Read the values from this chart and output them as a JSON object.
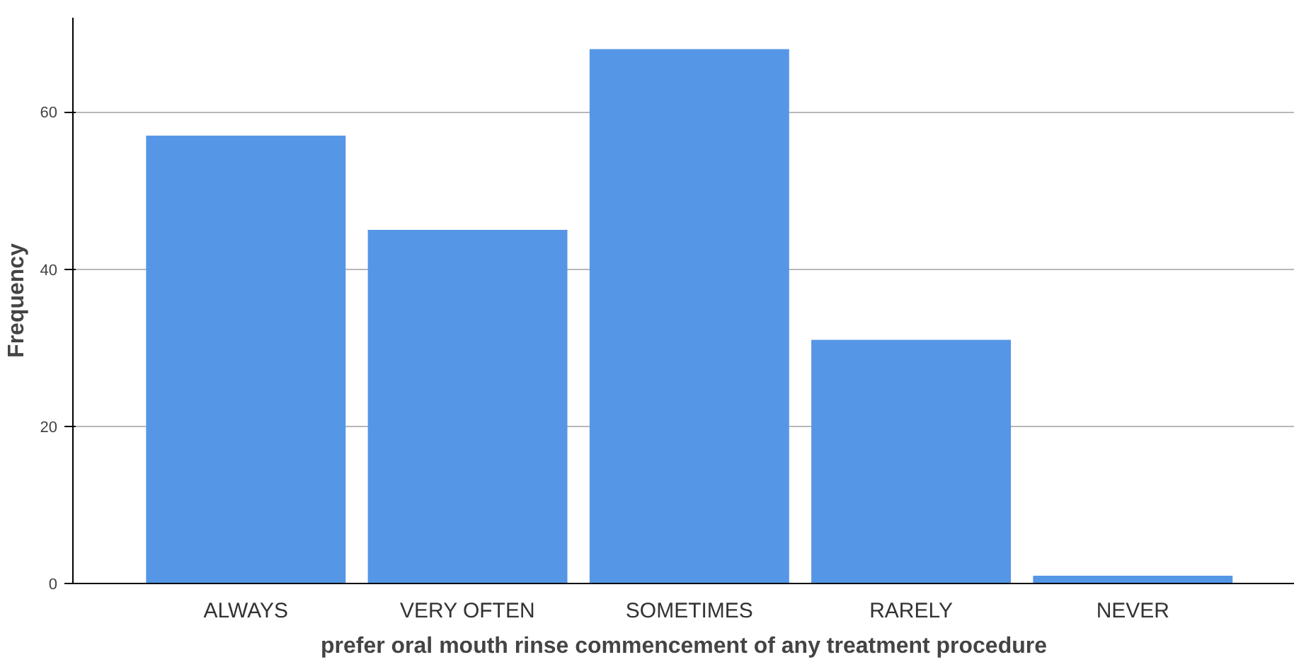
{
  "chart_data": {
    "type": "bar",
    "xlabel": "prefer oral mouth rinse commencement of any treatment procedure",
    "ylabel": "Frequency",
    "categories": [
      "ALWAYS",
      "VERY OFTEN",
      "SOMETIMES",
      "RARELY",
      "NEVER"
    ],
    "values": [
      57,
      45,
      68,
      31,
      1
    ],
    "color": "#5596e6",
    "ylim": [
      0,
      72
    ],
    "yticks": [
      0,
      20,
      40,
      60
    ],
    "grid": "y"
  }
}
